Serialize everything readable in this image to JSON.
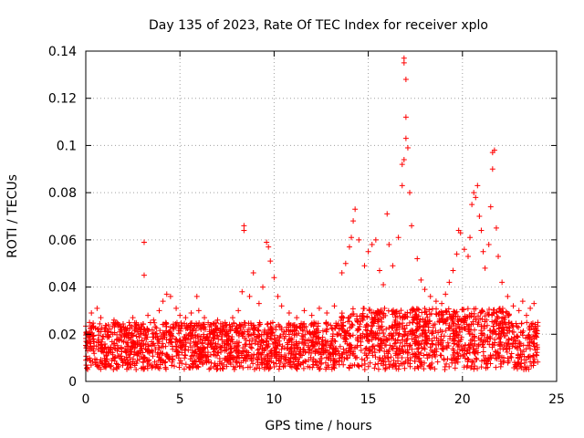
{
  "chart_data": {
    "type": "scatter",
    "title": "Day 135 of 2023, Rate Of TEC Index for receiver xplo",
    "xlabel": "GPS time / hours",
    "ylabel": "ROTI / TECUs",
    "xlim": [
      0,
      25
    ],
    "ylim": [
      0,
      0.14
    ],
    "x_ticks": [
      0,
      5,
      10,
      15,
      20,
      25
    ],
    "x_tick_labels": [
      "0",
      "5",
      "10",
      "15",
      "20",
      "25"
    ],
    "y_ticks": [
      0,
      0.02,
      0.04,
      0.06,
      0.08,
      0.1,
      0.12,
      0.14
    ],
    "y_tick_labels": [
      "0",
      "0.02",
      "0.04",
      "0.06",
      "0.08",
      "0.1",
      "0.12",
      "0.14"
    ],
    "grid": true,
    "marker": "plus",
    "series_color": "#ff0000",
    "series": [
      {
        "name": "ROTI",
        "points": [
          [
            0.1,
            0.013
          ],
          [
            0.2,
            0.025
          ],
          [
            0.3,
            0.029
          ],
          [
            0.4,
            0.018
          ],
          [
            0.6,
            0.031
          ],
          [
            0.8,
            0.027
          ],
          [
            1.0,
            0.022
          ],
          [
            1.2,
            0.024
          ],
          [
            1.5,
            0.026
          ],
          [
            1.8,
            0.021
          ],
          [
            2.0,
            0.023
          ],
          [
            2.3,
            0.025
          ],
          [
            2.5,
            0.027
          ],
          [
            2.8,
            0.024
          ],
          [
            3.1,
            0.059
          ],
          [
            3.1,
            0.045
          ],
          [
            3.3,
            0.028
          ],
          [
            3.6,
            0.026
          ],
          [
            3.9,
            0.03
          ],
          [
            4.1,
            0.034
          ],
          [
            4.3,
            0.037
          ],
          [
            4.5,
            0.036
          ],
          [
            4.8,
            0.031
          ],
          [
            5.0,
            0.028
          ],
          [
            5.3,
            0.027
          ],
          [
            5.6,
            0.029
          ],
          [
            5.9,
            0.036
          ],
          [
            6.0,
            0.03
          ],
          [
            6.3,
            0.027
          ],
          [
            6.6,
            0.024
          ],
          [
            7.0,
            0.026
          ],
          [
            7.4,
            0.025
          ],
          [
            7.8,
            0.027
          ],
          [
            8.1,
            0.03
          ],
          [
            8.3,
            0.038
          ],
          [
            8.4,
            0.066
          ],
          [
            8.4,
            0.064
          ],
          [
            8.7,
            0.036
          ],
          [
            8.9,
            0.046
          ],
          [
            9.2,
            0.033
          ],
          [
            9.4,
            0.04
          ],
          [
            9.6,
            0.059
          ],
          [
            9.7,
            0.057
          ],
          [
            9.8,
            0.051
          ],
          [
            10.0,
            0.044
          ],
          [
            10.2,
            0.036
          ],
          [
            10.4,
            0.032
          ],
          [
            10.8,
            0.029
          ],
          [
            11.2,
            0.027
          ],
          [
            11.6,
            0.03
          ],
          [
            12.0,
            0.028
          ],
          [
            12.4,
            0.031
          ],
          [
            12.8,
            0.029
          ],
          [
            13.2,
            0.032
          ],
          [
            13.6,
            0.046
          ],
          [
            13.8,
            0.05
          ],
          [
            14.0,
            0.057
          ],
          [
            14.1,
            0.061
          ],
          [
            14.2,
            0.068
          ],
          [
            14.3,
            0.073
          ],
          [
            14.5,
            0.06
          ],
          [
            14.8,
            0.049
          ],
          [
            15.0,
            0.055
          ],
          [
            15.2,
            0.058
          ],
          [
            15.4,
            0.06
          ],
          [
            15.6,
            0.047
          ],
          [
            15.8,
            0.041
          ],
          [
            16.0,
            0.071
          ],
          [
            16.1,
            0.058
          ],
          [
            16.3,
            0.049
          ],
          [
            16.6,
            0.061
          ],
          [
            16.8,
            0.083
          ],
          [
            16.8,
            0.092
          ],
          [
            16.9,
            0.094
          ],
          [
            16.9,
            0.137
          ],
          [
            16.9,
            0.135
          ],
          [
            17.0,
            0.128
          ],
          [
            17.0,
            0.112
          ],
          [
            17.0,
            0.103
          ],
          [
            17.1,
            0.099
          ],
          [
            17.2,
            0.08
          ],
          [
            17.3,
            0.066
          ],
          [
            17.6,
            0.052
          ],
          [
            17.8,
            0.043
          ],
          [
            18.0,
            0.039
          ],
          [
            18.3,
            0.036
          ],
          [
            18.6,
            0.034
          ],
          [
            18.9,
            0.033
          ],
          [
            19.1,
            0.037
          ],
          [
            19.3,
            0.042
          ],
          [
            19.5,
            0.047
          ],
          [
            19.7,
            0.054
          ],
          [
            19.8,
            0.064
          ],
          [
            19.9,
            0.063
          ],
          [
            20.1,
            0.056
          ],
          [
            20.3,
            0.053
          ],
          [
            20.4,
            0.061
          ],
          [
            20.5,
            0.075
          ],
          [
            20.6,
            0.08
          ],
          [
            20.7,
            0.078
          ],
          [
            20.8,
            0.083
          ],
          [
            20.9,
            0.07
          ],
          [
            21.0,
            0.064
          ],
          [
            21.1,
            0.055
          ],
          [
            21.2,
            0.048
          ],
          [
            21.4,
            0.058
          ],
          [
            21.5,
            0.074
          ],
          [
            21.6,
            0.09
          ],
          [
            21.6,
            0.097
          ],
          [
            21.7,
            0.098
          ],
          [
            21.8,
            0.065
          ],
          [
            21.9,
            0.053
          ],
          [
            22.1,
            0.042
          ],
          [
            22.4,
            0.036
          ],
          [
            22.7,
            0.032
          ],
          [
            23.0,
            0.03
          ],
          [
            23.2,
            0.034
          ],
          [
            23.4,
            0.028
          ],
          [
            23.6,
            0.031
          ],
          [
            23.8,
            0.033
          ],
          [
            24.0,
            0.025
          ]
        ],
        "band_summary": {
          "x_start": 0.0,
          "x_end": 24.0,
          "typical_min": 0.005,
          "typical_max": 0.025
        }
      }
    ]
  }
}
